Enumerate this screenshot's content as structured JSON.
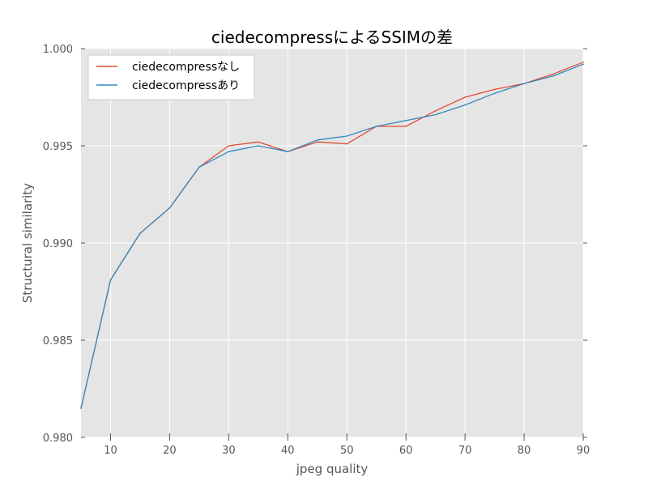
{
  "chart_data": {
    "type": "line",
    "title": "ciedecompressによるSSIMの差",
    "xlabel": "jpeg quality",
    "ylabel": "Structural similarity",
    "xlim": [
      5,
      90
    ],
    "ylim": [
      0.98,
      1.0
    ],
    "x_ticks": [
      10,
      20,
      30,
      40,
      50,
      60,
      70,
      80,
      90
    ],
    "y_ticks": [
      0.98,
      0.985,
      0.99,
      0.995,
      1.0
    ],
    "grid": true,
    "background_color": "#e5e5e5",
    "legend_position": "top-left",
    "x": [
      5,
      10,
      15,
      20,
      25,
      30,
      35,
      40,
      45,
      50,
      55,
      60,
      65,
      70,
      75,
      80,
      85,
      90
    ],
    "series": [
      {
        "name": "ciedecompressなし",
        "color": "#e24a33",
        "values": [
          0.9815,
          0.9881,
          0.9905,
          0.9918,
          0.9939,
          0.995,
          0.9952,
          0.9947,
          0.9952,
          0.9951,
          0.996,
          0.996,
          0.9968,
          0.9975,
          0.9979,
          0.9982,
          0.9987,
          0.9993
        ]
      },
      {
        "name": "ciedecompressあり",
        "color": "#348abd",
        "values": [
          0.9815,
          0.9881,
          0.9905,
          0.9918,
          0.9939,
          0.9947,
          0.995,
          0.9947,
          0.9953,
          0.9955,
          0.996,
          0.9963,
          0.9966,
          0.9971,
          0.9977,
          0.9982,
          0.9986,
          0.9992
        ]
      }
    ]
  }
}
